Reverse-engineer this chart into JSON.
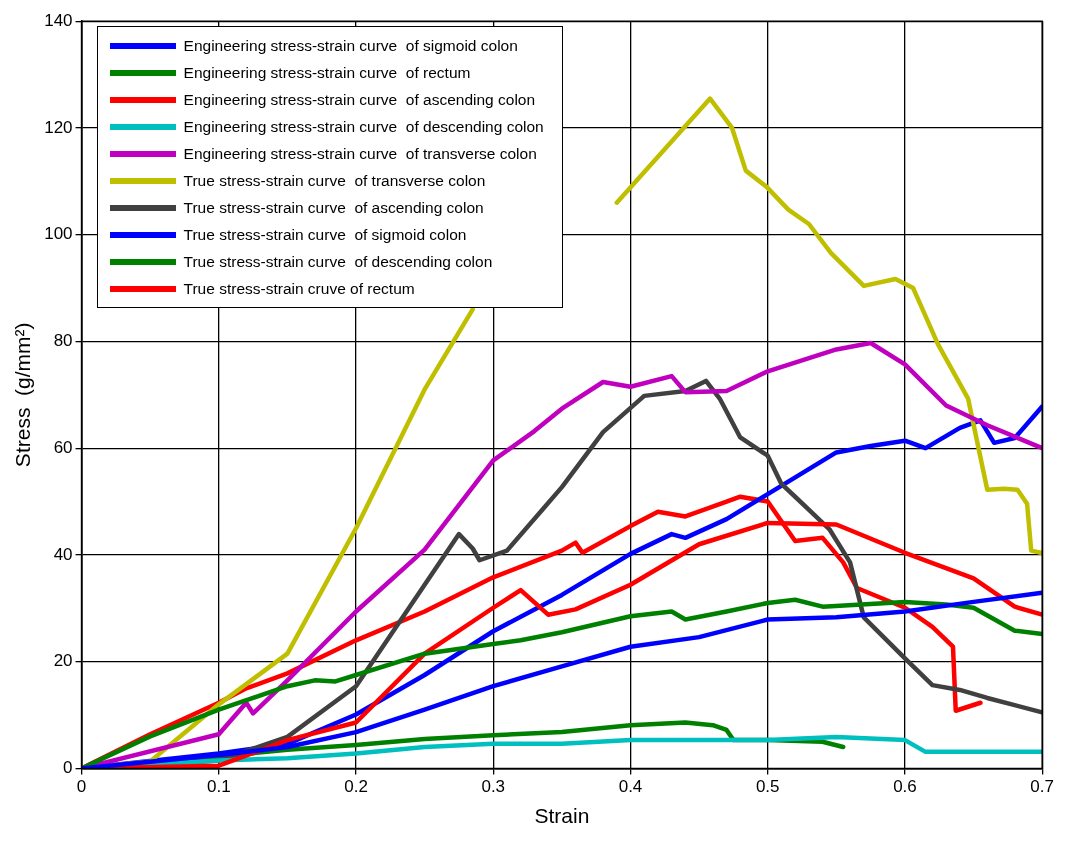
{
  "chart_data": {
    "type": "line",
    "xlabel": "Strain",
    "ylabel": "Stress  (g/mm²)",
    "xlim": [
      0,
      0.7
    ],
    "ylim": [
      0,
      140
    ],
    "xticks": [
      0,
      0.1,
      0.2,
      0.3,
      0.4,
      0.5,
      0.6,
      0.7
    ],
    "yticks": [
      0,
      20,
      40,
      60,
      80,
      100,
      120,
      140
    ],
    "grid": true,
    "legend": "top left",
    "marker": "none",
    "line_style": "solid",
    "series": [
      {
        "name": "Engineering stress-strain curve  of sigmoid colon",
        "color": "#0000ff",
        "x": [
          0,
          0.1,
          0.15,
          0.2,
          0.25,
          0.3,
          0.35,
          0.4,
          0.45,
          0.5,
          0.55,
          0.6,
          0.65,
          0.7
        ],
        "values": [
          0,
          2.5,
          4,
          6.8,
          11,
          15.4,
          19.1,
          22.8,
          24.6,
          27.9,
          28.3,
          29.4,
          31.2,
          32.9
        ]
      },
      {
        "name": "Engineering stress-strain curve  of rectum",
        "color": "#008000",
        "x": [
          0,
          0.05,
          0.1,
          0.15,
          0.17,
          0.185,
          0.2,
          0.25,
          0.3,
          0.32,
          0.35,
          0.4,
          0.43,
          0.44,
          0.47,
          0.5,
          0.52,
          0.54,
          0.6,
          0.63,
          0.65,
          0.68,
          0.7
        ],
        "values": [
          0,
          6,
          11,
          15.4,
          16.5,
          16.3,
          17.5,
          21.5,
          23.3,
          24,
          25.5,
          28.5,
          29.4,
          27.9,
          29.4,
          31,
          31.6,
          30.3,
          31.2,
          30.7,
          30.1,
          25.8,
          25.2
        ]
      },
      {
        "name": "Engineering stress-strain curve  of ascending colon",
        "color": "#ff0000",
        "x": [
          0,
          0.1,
          0.15,
          0.2,
          0.25,
          0.3,
          0.32,
          0.34,
          0.36,
          0.4,
          0.45,
          0.5,
          0.55,
          0.6,
          0.65,
          0.68,
          0.7
        ],
        "values": [
          0,
          0.5,
          5.3,
          8.6,
          21.5,
          30.1,
          33.4,
          28.8,
          29.8,
          34.4,
          42,
          46,
          45.7,
          40.4,
          35.6,
          30.3,
          28.8
        ]
      },
      {
        "name": "Engineering stress-strain curve  of descending colon",
        "color": "#00bfbf",
        "x": [
          0,
          0.1,
          0.15,
          0.2,
          0.25,
          0.3,
          0.35,
          0.4,
          0.5,
          0.55,
          0.6,
          0.615,
          0.65,
          0.7
        ],
        "values": [
          0,
          1.5,
          1.9,
          2.8,
          4,
          4.6,
          4.6,
          5.3,
          5.3,
          5.9,
          5.3,
          3.1,
          3.1,
          3.1
        ]
      },
      {
        "name": "Engineering stress-strain curve  of transverse colon",
        "color": "#bf00bf",
        "x": [
          0,
          0.1,
          0.12,
          0.125,
          0.15,
          0.2,
          0.25,
          0.3,
          0.33,
          0.35,
          0.38,
          0.4,
          0.43,
          0.44,
          0.47,
          0.5,
          0.55,
          0.575,
          0.6,
          0.63,
          0.66,
          0.7
        ],
        "values": [
          0,
          6.4,
          12.3,
          10.3,
          16.5,
          29.4,
          41,
          57.7,
          63.2,
          67.4,
          72.4,
          71.5,
          73.5,
          70.5,
          70.7,
          74.4,
          78.5,
          79.7,
          75.7,
          68,
          64.3,
          60
        ]
      },
      {
        "name": "True stress-strain curve  of transverse colon",
        "color": "#bfbf00",
        "x": [
          0,
          0.05,
          0.1,
          0.15,
          0.2,
          0.25,
          0.285,
          0.33,
          0.39,
          0.458,
          0.474,
          0.484,
          0.499,
          0.515,
          0.53,
          0.546,
          0.57,
          0.593,
          0.606,
          0.624,
          0.646,
          0.66,
          0.672,
          0.682,
          0.689,
          0.692,
          0.699
        ],
        "values": [
          0,
          1.3,
          12,
          21.5,
          45,
          71,
          86,
          null,
          106,
          125.5,
          120,
          112,
          109,
          104.7,
          102,
          96.6,
          90.4,
          91.7,
          90,
          79.5,
          69.3,
          52.2,
          52.4,
          52.2,
          49.6,
          40.8,
          40.4
        ]
      },
      {
        "name": "True stress-strain curve  of ascending colon",
        "color": "#404040",
        "x": [
          0,
          0.1,
          0.15,
          0.2,
          0.25,
          0.275,
          0.285,
          0.29,
          0.31,
          0.35,
          0.38,
          0.41,
          0.44,
          0.455,
          0.465,
          0.48,
          0.5,
          0.51,
          0.52,
          0.545,
          0.56,
          0.57,
          0.6,
          0.62,
          0.64,
          0.66,
          0.7
        ],
        "values": [
          0,
          1.5,
          5.9,
          15.4,
          34.4,
          43.9,
          41.2,
          39,
          40.8,
          52.7,
          63,
          69.8,
          70.7,
          72.6,
          69.3,
          62,
          58.6,
          53.3,
          50.9,
          44.8,
          38.6,
          28.3,
          20.6,
          15.6,
          14.7,
          13.2,
          10.5
        ]
      },
      {
        "name": "True stress-strain curve  of sigmoid colon",
        "color": "#0000ff",
        "x": [
          0,
          0.1,
          0.15,
          0.2,
          0.25,
          0.3,
          0.35,
          0.4,
          0.43,
          0.44,
          0.47,
          0.5,
          0.55,
          0.575,
          0.6,
          0.615,
          0.64,
          0.655,
          0.665,
          0.68,
          0.7
        ],
        "values": [
          0,
          2.8,
          4.6,
          10.1,
          17.5,
          25.7,
          32.5,
          40.2,
          43.9,
          43.2,
          46.7,
          51.4,
          59.2,
          60.4,
          61.4,
          60,
          63.8,
          65.2,
          61,
          61.9,
          67.8
        ]
      },
      {
        "name": "True stress-strain curve  of descending colon",
        "color": "#008000",
        "x": [
          0,
          0.1,
          0.15,
          0.2,
          0.25,
          0.3,
          0.35,
          0.4,
          0.44,
          0.46,
          0.47,
          0.475,
          0.5,
          0.54,
          0.555
        ],
        "values": [
          0,
          2.2,
          3.5,
          4.4,
          5.5,
          6.2,
          6.8,
          8.1,
          8.6,
          8.1,
          7.2,
          5.3,
          5.3,
          5,
          4
        ]
      },
      {
        "name": "True stress-strain cruve of rectum",
        "color": "#ff0000",
        "x": [
          0,
          0.05,
          0.1,
          0.12,
          0.15,
          0.2,
          0.25,
          0.3,
          0.35,
          0.36,
          0.365,
          0.4,
          0.42,
          0.44,
          0.47,
          0.48,
          0.5,
          0.52,
          0.54,
          0.555,
          0.565,
          0.6,
          0.62,
          0.635,
          0.637,
          0.655
        ],
        "values": [
          0,
          6.4,
          12.3,
          15,
          17.8,
          24,
          29.4,
          35.8,
          40.8,
          42.3,
          40.4,
          45.4,
          48.1,
          47.2,
          50,
          50.9,
          50,
          42.6,
          43.2,
          38.6,
          33.8,
          30.1,
          26.5,
          22.8,
          10.8,
          12.3
        ]
      }
    ]
  }
}
